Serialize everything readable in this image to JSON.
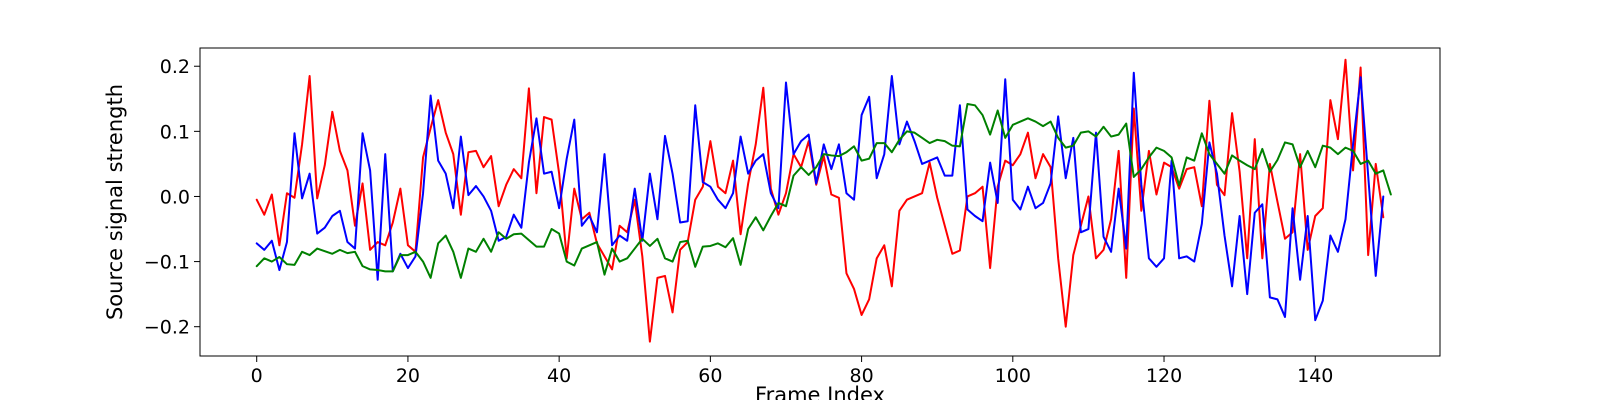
{
  "chart_data": {
    "type": "line",
    "title": "",
    "xlabel": "Frame Index",
    "ylabel": "Source signal strength",
    "xlim": [
      -7.5,
      156.5
    ],
    "ylim": [
      -0.245,
      0.228
    ],
    "xticks": [
      0,
      20,
      40,
      60,
      80,
      100,
      120,
      140
    ],
    "yticks": [
      -0.2,
      -0.1,
      0.0,
      0.1,
      0.2
    ],
    "ytick_labels": [
      "−0.2",
      "−0.1",
      "0.0",
      "0.1",
      "0.2"
    ],
    "grid": false,
    "legend": "none",
    "series": [
      {
        "color": "#ff0000",
        "values": [
          -0.005,
          -0.028,
          0.003,
          -0.075,
          0.005,
          -0.002,
          0.08,
          0.185,
          -0.003,
          0.048,
          0.13,
          0.07,
          0.04,
          -0.045,
          0.02,
          -0.082,
          -0.07,
          -0.075,
          -0.04,
          0.012,
          -0.075,
          -0.085,
          0.06,
          0.105,
          0.148,
          0.098,
          0.065,
          -0.028,
          0.068,
          0.07,
          0.045,
          0.062,
          -0.015,
          0.018,
          0.042,
          0.028,
          0.166,
          0.005,
          0.122,
          0.118,
          0.035,
          -0.095,
          0.012,
          -0.035,
          -0.025,
          -0.072,
          -0.092,
          -0.112,
          -0.045,
          -0.055,
          -0.005,
          -0.092,
          -0.223,
          -0.125,
          -0.122,
          -0.178,
          -0.082,
          -0.07,
          -0.005,
          0.015,
          0.085,
          0.015,
          0.005,
          0.055,
          -0.058,
          0.02,
          0.08,
          0.167,
          0.012,
          -0.028,
          0.005,
          0.065,
          0.045,
          0.085,
          0.018,
          0.062,
          0.003,
          -0.002,
          -0.118,
          -0.142,
          -0.182,
          -0.158,
          -0.095,
          -0.075,
          -0.138,
          -0.022,
          -0.005,
          0.0,
          0.005,
          0.052,
          -0.002,
          -0.045,
          -0.088,
          -0.083,
          0.0,
          0.005,
          0.015,
          -0.11,
          0.015,
          0.055,
          0.048,
          0.065,
          0.098,
          0.028,
          0.065,
          0.045,
          -0.095,
          -0.2,
          -0.09,
          -0.045,
          0.0,
          -0.095,
          -0.082,
          -0.035,
          0.07,
          -0.125,
          0.135,
          -0.022,
          0.07,
          0.003,
          0.052,
          0.045,
          0.012,
          0.042,
          0.045,
          -0.015,
          0.147,
          0.018,
          0.002,
          0.128,
          0.038,
          -0.095,
          0.088,
          -0.095,
          0.05,
          -0.008,
          -0.065,
          -0.055,
          0.065,
          -0.082,
          -0.03,
          -0.018,
          0.148,
          0.088,
          0.21,
          0.04,
          0.198,
          -0.09,
          0.05,
          -0.032
        ]
      },
      {
        "color": "#0000ff",
        "values": [
          -0.072,
          -0.082,
          -0.068,
          -0.113,
          -0.07,
          0.097,
          -0.003,
          0.035,
          -0.057,
          -0.048,
          -0.03,
          -0.022,
          -0.07,
          -0.08,
          0.097,
          0.04,
          -0.128,
          0.065,
          -0.115,
          -0.088,
          -0.11,
          -0.092,
          0.005,
          0.155,
          0.055,
          0.035,
          -0.018,
          0.092,
          0.002,
          0.016,
          0.0,
          -0.022,
          -0.068,
          -0.062,
          -0.028,
          -0.048,
          0.052,
          0.12,
          0.035,
          0.038,
          -0.018,
          0.058,
          0.118,
          -0.045,
          -0.03,
          -0.055,
          0.065,
          -0.075,
          -0.06,
          -0.068,
          0.012,
          -0.068,
          0.035,
          -0.035,
          0.093,
          0.035,
          -0.04,
          -0.038,
          0.14,
          0.022,
          0.015,
          -0.005,
          -0.018,
          0.005,
          0.092,
          0.035,
          0.055,
          0.065,
          0.005,
          -0.018,
          0.175,
          0.065,
          0.085,
          0.095,
          0.02,
          0.08,
          0.042,
          0.08,
          0.005,
          -0.005,
          0.125,
          0.153,
          0.028,
          0.065,
          0.185,
          0.08,
          0.115,
          0.085,
          0.05,
          0.055,
          0.06,
          0.032,
          0.032,
          0.14,
          -0.02,
          -0.03,
          -0.038,
          0.052,
          -0.01,
          0.18,
          -0.005,
          -0.02,
          0.015,
          -0.018,
          -0.01,
          0.02,
          0.123,
          0.028,
          0.09,
          -0.055,
          -0.05,
          0.098,
          -0.062,
          -0.085,
          0.012,
          -0.08,
          0.19,
          0.018,
          -0.095,
          -0.108,
          -0.095,
          0.055,
          -0.095,
          -0.092,
          -0.1,
          -0.042,
          0.083,
          0.035,
          -0.06,
          -0.138,
          -0.03,
          -0.15,
          -0.025,
          -0.012,
          -0.155,
          -0.158,
          -0.185,
          -0.018,
          -0.128,
          -0.03,
          -0.19,
          -0.16,
          -0.06,
          -0.085,
          -0.035,
          0.08,
          0.183,
          0.032,
          -0.122,
          0.0
        ]
      },
      {
        "color": "#008000",
        "values": [
          -0.107,
          -0.095,
          -0.1,
          -0.093,
          -0.104,
          -0.105,
          -0.085,
          -0.09,
          -0.08,
          -0.084,
          -0.088,
          -0.082,
          -0.087,
          -0.085,
          -0.107,
          -0.112,
          -0.113,
          -0.115,
          -0.115,
          -0.09,
          -0.09,
          -0.085,
          -0.1,
          -0.125,
          -0.072,
          -0.06,
          -0.085,
          -0.125,
          -0.08,
          -0.085,
          -0.065,
          -0.085,
          -0.055,
          -0.065,
          -0.058,
          -0.057,
          -0.067,
          -0.077,
          -0.077,
          -0.05,
          -0.057,
          -0.1,
          -0.106,
          -0.08,
          -0.075,
          -0.07,
          -0.12,
          -0.08,
          -0.1,
          -0.095,
          -0.08,
          -0.065,
          -0.076,
          -0.065,
          -0.095,
          -0.1,
          -0.07,
          -0.068,
          -0.108,
          -0.077,
          -0.076,
          -0.072,
          -0.078,
          -0.064,
          -0.105,
          -0.05,
          -0.032,
          -0.052,
          -0.03,
          -0.01,
          -0.015,
          0.032,
          0.045,
          0.033,
          0.045,
          0.065,
          0.063,
          0.062,
          0.068,
          0.077,
          0.055,
          0.058,
          0.082,
          0.082,
          0.068,
          0.087,
          0.1,
          0.098,
          0.09,
          0.082,
          0.087,
          0.085,
          0.078,
          0.077,
          0.142,
          0.14,
          0.125,
          0.095,
          0.132,
          0.09,
          0.11,
          0.115,
          0.12,
          0.115,
          0.108,
          0.115,
          0.09,
          0.075,
          0.078,
          0.098,
          0.1,
          0.092,
          0.107,
          0.092,
          0.095,
          0.112,
          0.03,
          0.042,
          0.06,
          0.075,
          0.07,
          0.06,
          0.017,
          0.06,
          0.055,
          0.097,
          0.065,
          0.05,
          0.035,
          0.063,
          0.055,
          0.048,
          0.042,
          0.073,
          0.038,
          0.056,
          0.083,
          0.08,
          0.045,
          0.07,
          0.045,
          0.078,
          0.075,
          0.065,
          0.075,
          0.07,
          0.05,
          0.055,
          0.035,
          0.04,
          0.003
        ]
      }
    ]
  }
}
